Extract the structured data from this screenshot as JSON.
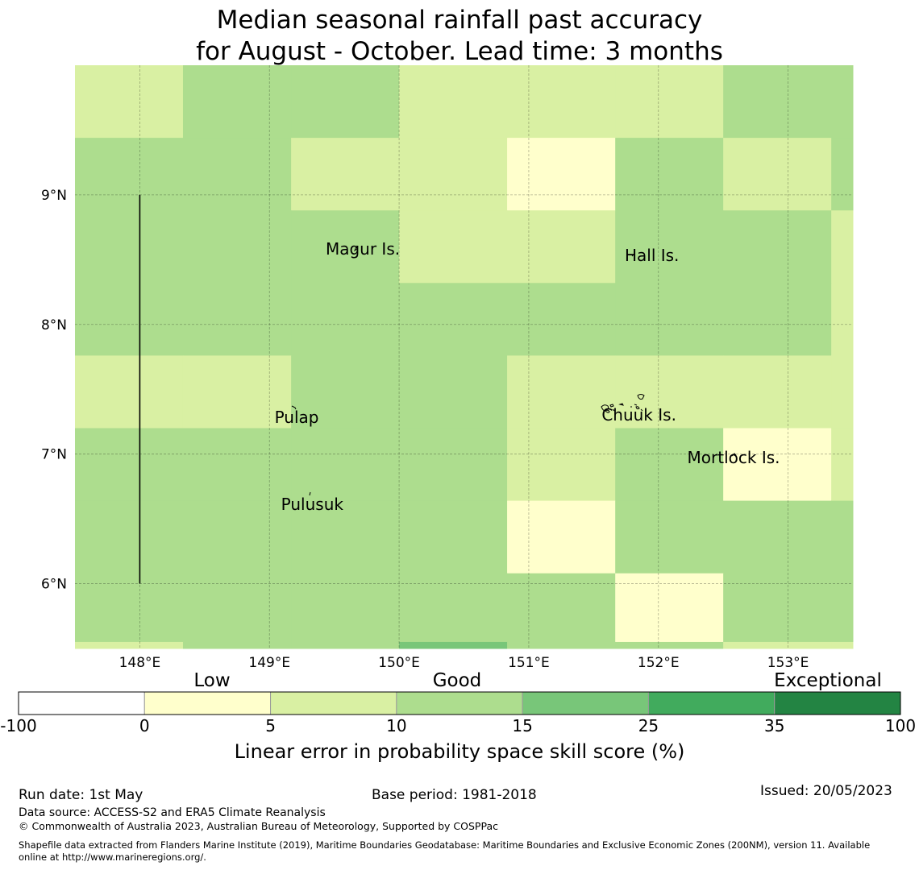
{
  "title": {
    "line1": "Median seasonal rainfall past accuracy",
    "line2": "for August - October. Lead time: 3 months"
  },
  "map": {
    "lon_range": [
      147.5,
      153.5
    ],
    "lat_range": [
      5.5,
      10.0
    ],
    "lon_ticks": [
      {
        "value": 148,
        "label": "148°E"
      },
      {
        "value": 149,
        "label": "149°E"
      },
      {
        "value": 150,
        "label": "150°E"
      },
      {
        "value": 151,
        "label": "151°E"
      },
      {
        "value": 152,
        "label": "152°E"
      },
      {
        "value": 153,
        "label": "153°E"
      }
    ],
    "lat_ticks": [
      {
        "value": 9,
        "label": "9°N"
      },
      {
        "value": 8,
        "label": "8°N"
      },
      {
        "value": 7,
        "label": "7°N"
      },
      {
        "value": 6,
        "label": "6°N"
      }
    ],
    "grid_lon_edges": [
      147.5,
      148.333,
      149.167,
      150.0,
      150.833,
      151.667,
      152.5,
      153.333,
      153.5
    ],
    "grid_lat_edges": [
      10.0,
      9.44,
      8.88,
      8.32,
      7.76,
      7.2,
      6.64,
      6.08,
      5.55,
      5.5
    ],
    "skill_classes": [
      [
        2,
        3,
        3,
        2,
        2,
        2,
        3,
        3
      ],
      [
        3,
        3,
        2,
        2,
        1,
        3,
        2,
        3
      ],
      [
        3,
        3,
        3,
        2,
        2,
        3,
        3,
        2
      ],
      [
        3,
        3,
        3,
        3,
        3,
        3,
        3,
        2
      ],
      [
        2,
        2,
        3,
        3,
        2,
        2,
        2,
        2
      ],
      [
        3,
        3,
        3,
        3,
        2,
        3,
        1,
        2
      ],
      [
        3,
        3,
        3,
        3,
        1,
        3,
        3,
        3
      ],
      [
        3,
        3,
        3,
        3,
        3,
        1,
        3,
        3
      ],
      [
        2,
        3,
        3,
        4,
        3,
        3,
        2,
        2
      ]
    ],
    "boundary_line": {
      "lon": 148.0,
      "lat_from": 6.0,
      "lat_to": 9.0
    },
    "places": [
      {
        "name": "Magur Is.",
        "lon": 149.72,
        "lat": 8.54
      },
      {
        "name": "Hall Is.",
        "lon": 151.95,
        "lat": 8.49
      },
      {
        "name": "Pulap",
        "lon": 149.21,
        "lat": 7.24
      },
      {
        "name": "Chuuk Is.",
        "lon": 151.85,
        "lat": 7.26
      },
      {
        "name": "Mortlock Is.",
        "lon": 152.58,
        "lat": 6.93
      },
      {
        "name": "Pulusuk",
        "lon": 149.33,
        "lat": 6.57
      }
    ]
  },
  "colorbar": {
    "category_labels": [
      "Low",
      "Good",
      "Exceptional"
    ],
    "tick_labels": [
      "-100",
      "0",
      "5",
      "10",
      "15",
      "25",
      "35",
      "100"
    ],
    "colors": [
      "#ffffff",
      "#ffffcc",
      "#d9f0a3",
      "#addd8e",
      "#78c679",
      "#41ab5d",
      "#238443"
    ],
    "xlabel": "Linear error in probability space skill score (%)"
  },
  "footer": {
    "run_date": "Run date: 1st May",
    "base_period": "Base period: 1981-2018",
    "issued": "Issued: 20/05/2023",
    "data_source": "Data source: ACCESS-S2 and ERA5 Climate Reanalysis",
    "copyright": "© Commonwealth of Australia 2023, Australian Bureau of Meteorology, Supported by COSPPac",
    "shapefile_line1": "Shapefile data extracted from Flanders Marine Institute (2019), Maritime Boundaries Geodatabase: Maritime Boundaries and Exclusive Economic Zones (200NM), version 11. Available",
    "shapefile_line2": "online at http://www.marineregions.org/."
  }
}
